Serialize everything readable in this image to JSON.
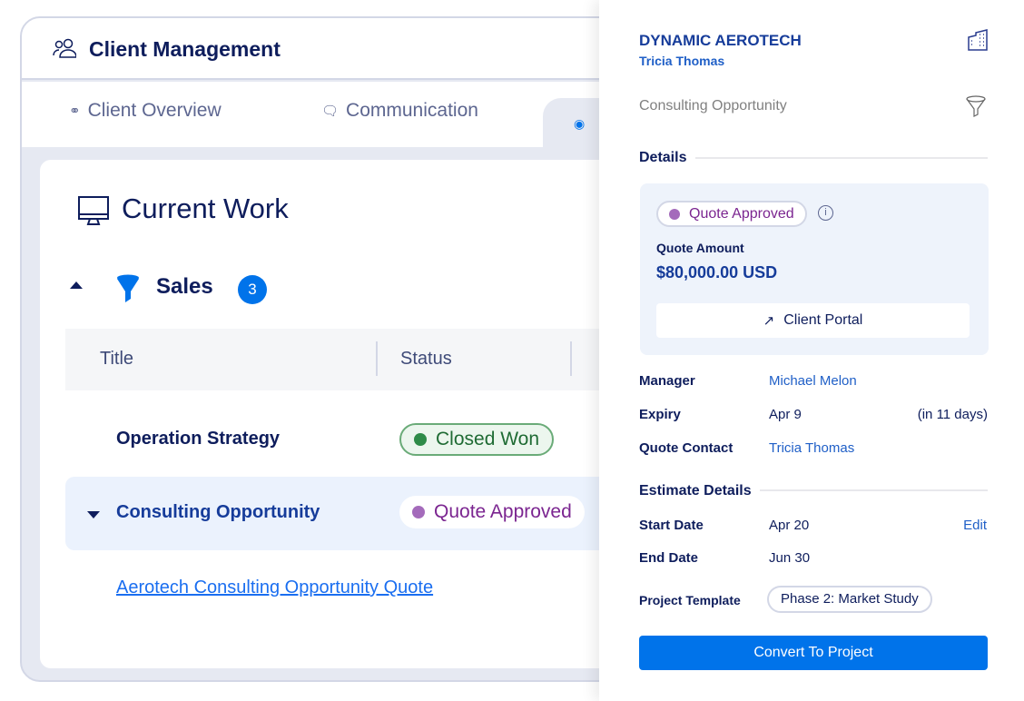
{
  "header": {
    "title": "Client Management",
    "icon": "users-icon"
  },
  "tabs": [
    {
      "label": "Client Overview",
      "icon": "binoculars-icon"
    },
    {
      "label": "Communication",
      "icon": "chat-icon"
    },
    {
      "label": "",
      "icon": "coins-icon",
      "active": true
    }
  ],
  "main": {
    "section_title": "Current Work",
    "group": {
      "label": "Sales",
      "count": "3"
    },
    "columns": [
      "Title",
      "Status"
    ],
    "rows": [
      {
        "title": "Operation Strategy",
        "status": "Closed Won",
        "status_color": "#2e8b48"
      },
      {
        "title": "Consulting Opportunity",
        "status": "Quote Approved",
        "status_color": "#a46bbb",
        "selected": true,
        "expanded": true
      }
    ],
    "sub_link": "Aerotech Consulting Opportunity Quote"
  },
  "panel": {
    "company": "DYNAMIC AEROTECH",
    "contact": "Tricia Thomas",
    "opportunity": "Consulting Opportunity",
    "details_heading": "Details",
    "status": "Quote Approved",
    "quote_amount_label": "Quote Amount",
    "quote_amount": "$80,000.00 USD",
    "portal_button": "Client Portal",
    "fields": [
      {
        "label": "Manager",
        "value": "Michael Melon"
      },
      {
        "label": "Expiry",
        "value": "Apr 9",
        "extra": "(in 11 days)"
      },
      {
        "label": "Quote Contact",
        "value": "Tricia Thomas"
      }
    ],
    "estimate_heading": "Estimate Details",
    "estimate": [
      {
        "label": "Start Date",
        "value": "Apr 20",
        "action": "Edit"
      },
      {
        "label": "End Date",
        "value": "Jun 30"
      },
      {
        "label": "Project Template",
        "value": "Phase 2: Market Study"
      }
    ],
    "convert_button": "Convert To Project"
  },
  "colors": {
    "accent": "#0073ea",
    "navy": "#0e1d5c",
    "link": "#1f5fc7"
  }
}
